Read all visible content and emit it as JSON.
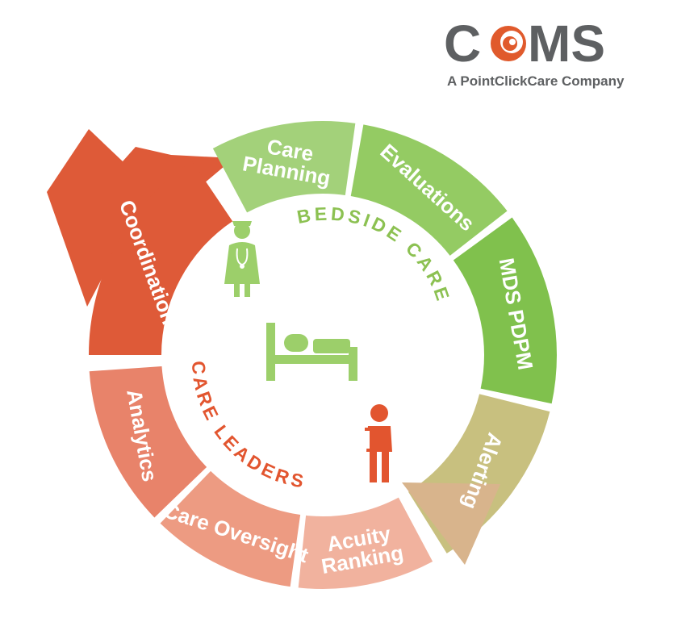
{
  "logo": {
    "brand": "COMS",
    "tagline_prefix": "A PointClickCare",
    "tagline_suffix": " Company",
    "colors": {
      "gray": "#5e6062",
      "orange": "#e05a2c"
    }
  },
  "ring_titles": {
    "bedside": {
      "text": "BEDSIDE CARE",
      "color": "#8cc152"
    },
    "leaders": {
      "text": "CARE LEADERS",
      "color": "#e2552f"
    }
  },
  "segments": [
    {
      "id": "care-planning",
      "lines": [
        "Care",
        "Planning"
      ],
      "color": "#a3d17a"
    },
    {
      "id": "evaluations",
      "lines": [
        "Evaluations"
      ],
      "color": "#94cb63"
    },
    {
      "id": "mds-pdpm",
      "lines": [
        "MDS PDPM"
      ],
      "color": "#80c14d"
    },
    {
      "id": "alerting",
      "lines": [
        "Alerting"
      ],
      "color": "#c8c07f"
    },
    {
      "id": "acuity-ranking",
      "lines": [
        "Acuity",
        "Ranking"
      ],
      "color": "#f1b29e"
    },
    {
      "id": "care-oversight",
      "lines": [
        "Care Oversight"
      ],
      "color": "#ed9b82"
    },
    {
      "id": "analytics",
      "lines": [
        "Analytics"
      ],
      "color": "#e8836a"
    },
    {
      "id": "coordination",
      "lines": [
        "Coordination"
      ],
      "color": "#de5a38"
    }
  ],
  "icons": {
    "nurse": "nurse-icon",
    "bed": "bed-icon",
    "care-leader": "care-leader-icon"
  }
}
